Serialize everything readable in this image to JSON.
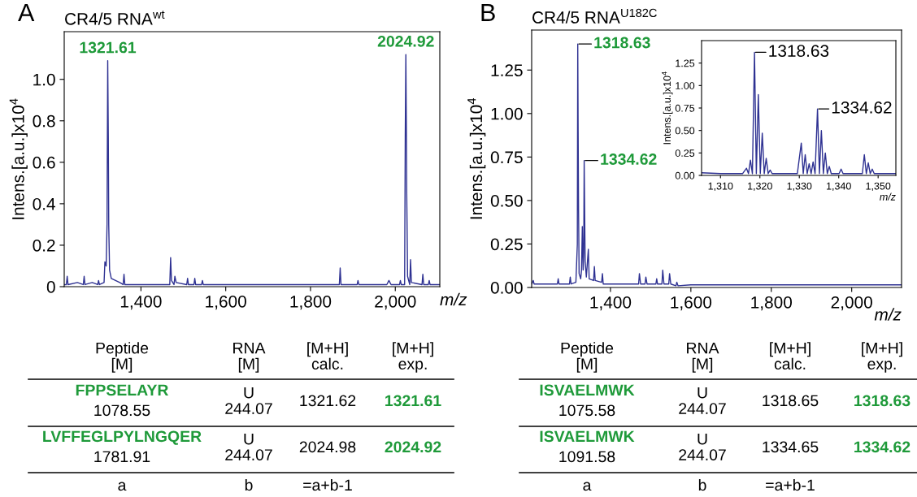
{
  "chart_data": [
    {
      "type": "line",
      "title": "CR4/5 RNA$^{wt}$",
      "xlabel": "m/z",
      "ylabel": "Intens.[a.u.]x10$^{4}$",
      "grid": false,
      "marker": "none",
      "xlim": [
        1219,
        2105
      ],
      "ylim": [
        0,
        1.23
      ],
      "xticks": [
        {
          "value": 1400,
          "label": "1,400"
        },
        {
          "value": 1600,
          "label": "1,600"
        },
        {
          "value": 1800,
          "label": "1,800"
        },
        {
          "value": 2000,
          "label": "2,000"
        }
      ],
      "yticks": [
        0,
        0.2,
        0.4,
        0.6,
        0.8,
        {
          "value": 1.0,
          "label": "1.0"
        }
      ],
      "series": [
        {
          "color": "#2e3192",
          "x": [
            1219,
            1224,
            1226,
            1228,
            1250,
            1264,
            1266,
            1268,
            1285,
            1298,
            1300,
            1302,
            1313,
            1315,
            1318,
            1320,
            1321.61,
            1323,
            1324,
            1326,
            1330,
            1340,
            1350,
            1358,
            1360,
            1362,
            1400,
            1468,
            1470,
            1472,
            1478,
            1480,
            1483,
            1508,
            1510,
            1512,
            1525,
            1527,
            1529,
            1543,
            1545,
            1547,
            1600,
            1700,
            1800,
            1868,
            1870,
            1872,
            1910,
            1912,
            1914,
            1980,
            1985,
            1990,
            2010,
            2012,
            2014,
            2022,
            2023.5,
            2024.92,
            2026,
            2027,
            2029,
            2034,
            2036,
            2038,
            2063,
            2065,
            2067,
            2078,
            2080,
            2082,
            2105
          ],
          "values": [
            0.01,
            0.01,
            0.05,
            0.01,
            0.02,
            0.01,
            0.05,
            0.01,
            0.02,
            0.01,
            0.03,
            0.01,
            0.02,
            0.12,
            0.1,
            0.3,
            1.09,
            0.72,
            0.3,
            0.08,
            0.04,
            0.03,
            0.02,
            0.01,
            0.06,
            0.01,
            0.01,
            0.01,
            0.14,
            0.03,
            0.01,
            0.05,
            0.02,
            0.01,
            0.04,
            0.01,
            0.01,
            0.04,
            0.01,
            0.01,
            0.03,
            0.01,
            0.01,
            0.01,
            0.01,
            0.01,
            0.09,
            0.01,
            0.01,
            0.03,
            0.01,
            0.01,
            0.03,
            0.01,
            0.01,
            0.03,
            0.01,
            0.01,
            0.72,
            1.12,
            0.8,
            0.45,
            0.05,
            0.01,
            0.13,
            0.02,
            0.01,
            0.06,
            0.01,
            0.01,
            0.03,
            0.01,
            0.01
          ]
        }
      ],
      "annotations": [
        {
          "text": "1321.61",
          "x": 1321.61,
          "y": 1.09
        },
        {
          "text": "2024.92",
          "x": 2024.92,
          "y": 1.12
        },
        "A",
        "Peptide\n[M]",
        "RNA\n[M]",
        "[M+H]\ncalc.",
        "[M+H]\nexp.",
        "FPPSELAYR",
        "1078.55",
        "U\n244.07",
        "1321.62",
        "1321.61",
        "LVFFEGLPYLNGQER",
        "1781.91",
        "U\n244.07",
        "2024.98",
        "2024.92",
        "a",
        "b",
        "=a+b-1"
      ]
    },
    {
      "type": "line",
      "title": "CR4/5 RNA$^{U182C}$",
      "xlabel": "m/z",
      "ylabel": "Intens.[a.u.]x10$^{4}$",
      "grid": false,
      "marker": "none",
      "xlim": [
        1204,
        2124
      ],
      "ylim": [
        0,
        1.48
      ],
      "xticks": [
        {
          "value": 1400,
          "label": "1,400"
        },
        {
          "value": 1600,
          "label": "1,600"
        },
        {
          "value": 1800,
          "label": "1,800"
        },
        {
          "value": 2000,
          "label": "2,000"
        }
      ],
      "yticks": [
        {
          "value": 0,
          "label": "0.00"
        },
        0.25,
        {
          "value": 0.5,
          "label": "0.50"
        },
        0.75,
        {
          "value": 1.0,
          "label": "1.00"
        },
        1.25
      ],
      "series": [
        {
          "color": "#2e3192",
          "x": [
            1204,
            1208,
            1210,
            1250,
            1268,
            1270,
            1272,
            1298,
            1300,
            1302,
            1314,
            1316,
            1317.6,
            1318.63,
            1319.6,
            1320.6,
            1322,
            1326,
            1328,
            1330,
            1332,
            1333.5,
            1334.62,
            1335.6,
            1337,
            1340,
            1345,
            1347,
            1358,
            1360,
            1362,
            1378,
            1380,
            1382,
            1400,
            1470,
            1472,
            1475,
            1486,
            1488,
            1491,
            1513,
            1515,
            1517,
            1528,
            1530,
            1533,
            1545,
            1547,
            1550,
            1563,
            1565,
            1568,
            1600,
            1800,
            2000,
            2124
          ],
          "values": [
            0.02,
            0.04,
            0.02,
            0.02,
            0.02,
            0.05,
            0.02,
            0.02,
            0.06,
            0.02,
            0.03,
            0.15,
            0.25,
            1.4,
            0.9,
            0.45,
            0.08,
            0.05,
            0.1,
            0.35,
            0.1,
            0.2,
            0.73,
            0.49,
            0.15,
            0.06,
            0.22,
            0.05,
            0.04,
            0.12,
            0.04,
            0.03,
            0.08,
            0.02,
            0.02,
            0.02,
            0.08,
            0.02,
            0.02,
            0.06,
            0.02,
            0.02,
            0.05,
            0.02,
            0.02,
            0.1,
            0.02,
            0.02,
            0.08,
            0.02,
            0.01,
            0.03,
            0.01,
            0.015,
            0.015,
            0.015,
            0.015
          ]
        }
      ],
      "annotations": [
        {
          "text": "1318.63",
          "x": 1318.63,
          "y": 1.4
        },
        {
          "text": "1334.62",
          "x": 1334.62,
          "y": 0.73
        },
        "B",
        "Peptide\n[M]",
        "RNA\n[M]",
        "[M+H]\ncalc.",
        "[M+H]\nexp.",
        "ISVAELMWK",
        "1075.58",
        "U\n244.07",
        "1318.65",
        "1318.63",
        "ISVAELMWK",
        "1091.58",
        "U\n244.07",
        "1334.65",
        "1334.62",
        "a",
        "b",
        "=a+b-1"
      ]
    },
    {
      "type": "line",
      "xlabel": "m/z",
      "ylabel": "Intens.[a.u.]x10$^{4}$",
      "grid": false,
      "marker": "none",
      "xlim": [
        1305.2,
        1354.5
      ],
      "ylim": [
        0,
        1.5
      ],
      "xticks": [
        {
          "value": 1310,
          "label": "1,310"
        },
        {
          "value": 1320,
          "label": "1,320"
        },
        {
          "value": 1330,
          "label": "1,330"
        },
        {
          "value": 1340,
          "label": "1,340"
        },
        {
          "value": 1350,
          "label": "1,350"
        }
      ],
      "yticks": [
        {
          "value": 0,
          "label": "0.00"
        },
        0.25,
        {
          "value": 0.5,
          "label": "0.50"
        },
        0.75,
        {
          "value": 1.0,
          "label": "1.00"
        },
        1.25
      ],
      "series": [
        {
          "color": "#2e3192",
          "x": [
            1305.2,
            1310,
            1315.6,
            1316.6,
            1317.1,
            1317.6,
            1318.1,
            1318.63,
            1319.1,
            1319.6,
            1320.1,
            1320.6,
            1321.1,
            1321.6,
            1322.1,
            1322.6,
            1323.1,
            1329.5,
            1330.5,
            1331,
            1331.5,
            1332,
            1332.5,
            1333,
            1333.5,
            1334,
            1334.62,
            1335.1,
            1335.6,
            1336.1,
            1336.6,
            1337.1,
            1337.6,
            1338.1,
            1340.1,
            1340.6,
            1341.1,
            1346,
            1346.5,
            1347,
            1347.5,
            1348,
            1348.5,
            1349,
            1354.5
          ],
          "values": [
            0.03,
            0.02,
            0.02,
            0.08,
            0.02,
            0.17,
            0.02,
            1.37,
            0.02,
            0.9,
            0.02,
            0.47,
            0.02,
            0.19,
            0.02,
            0.06,
            0.02,
            0.02,
            0.36,
            0.02,
            0.23,
            0.02,
            0.13,
            0.02,
            0.15,
            0.02,
            0.74,
            0.02,
            0.5,
            0.02,
            0.25,
            0.02,
            0.1,
            0.02,
            0.02,
            0.07,
            0.02,
            0.02,
            0.23,
            0.02,
            0.14,
            0.02,
            0.07,
            0.02,
            0.02
          ]
        }
      ],
      "annotations": [
        {
          "text": "1318.63",
          "x": 1318.63,
          "y": 1.37
        },
        {
          "text": "1334.62",
          "x": 1334.62,
          "y": 0.74
        }
      ]
    }
  ]
}
